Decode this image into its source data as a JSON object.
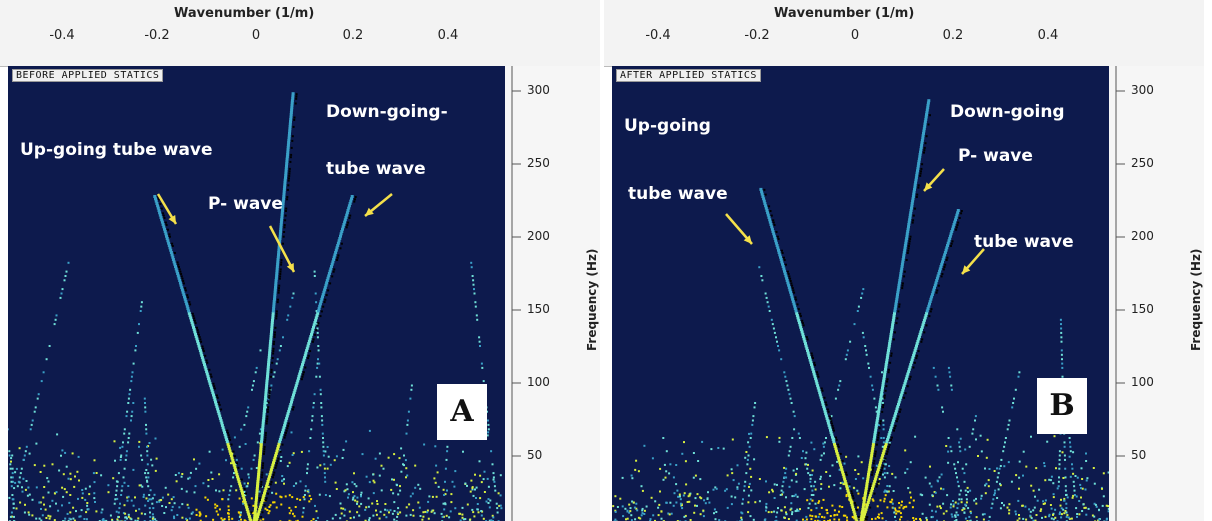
{
  "chart_data": [
    {
      "type": "heatmap",
      "title": "",
      "xlabel": "Wavenumber (1/m)",
      "ylabel": "Frequency (Hz)",
      "x_ticks": [
        "-0.4",
        "-0.2",
        "0",
        "0.2",
        "0.4"
      ],
      "y_ticks": [
        "300",
        "250",
        "200",
        "150",
        "100",
        "50"
      ],
      "xlim": [
        -0.5,
        0.5
      ],
      "ylim": [
        0,
        320
      ],
      "stamp": "BEFORE APPLIED STATICS",
      "panel_label": "A",
      "annotations": [
        "Up-going tube wave",
        "P- wave",
        "Down-going-",
        "tube wave"
      ],
      "events": [
        {
          "name": "up-going tube wave",
          "k_at_0Hz": 0.0,
          "k_at_top": -0.2,
          "f_top": 230
        },
        {
          "name": "P-wave",
          "k_at_0Hz": 0.0,
          "k_at_top": 0.08,
          "f_top": 300
        },
        {
          "name": "down-going tube wave",
          "k_at_0Hz": 0.0,
          "k_at_top": 0.2,
          "f_top": 230
        }
      ],
      "colormap": [
        "#0d1a4d",
        "#3aa0c8",
        "#6fe0d8",
        "#d8f040",
        "#f8d800"
      ]
    },
    {
      "type": "heatmap",
      "title": "",
      "xlabel": "Wavenumber (1/m)",
      "ylabel": "Frequency (Hz)",
      "x_ticks": [
        "-0.4",
        "-0.2",
        "0",
        "0.2",
        "0.4"
      ],
      "y_ticks": [
        "300",
        "250",
        "200",
        "150",
        "100",
        "50"
      ],
      "xlim": [
        -0.5,
        0.5
      ],
      "ylim": [
        0,
        320
      ],
      "stamp": "AFTER APPLIED STATICS",
      "panel_label": "B",
      "annotations": [
        "Up-going",
        "tube wave",
        "Down-going",
        "P- wave",
        "tube wave"
      ],
      "events": [
        {
          "name": "up-going tube wave",
          "k_at_0Hz": 0.0,
          "k_at_top": -0.2,
          "f_top": 235
        },
        {
          "name": "P-wave",
          "k_at_0Hz": 0.0,
          "k_at_top": 0.14,
          "f_top": 295
        },
        {
          "name": "down-going tube wave",
          "k_at_0Hz": 0.0,
          "k_at_top": 0.2,
          "f_top": 220
        }
      ],
      "colormap": [
        "#0d1a4d",
        "#3aa0c8",
        "#6fe0d8",
        "#d8f040",
        "#f8d800"
      ]
    }
  ]
}
